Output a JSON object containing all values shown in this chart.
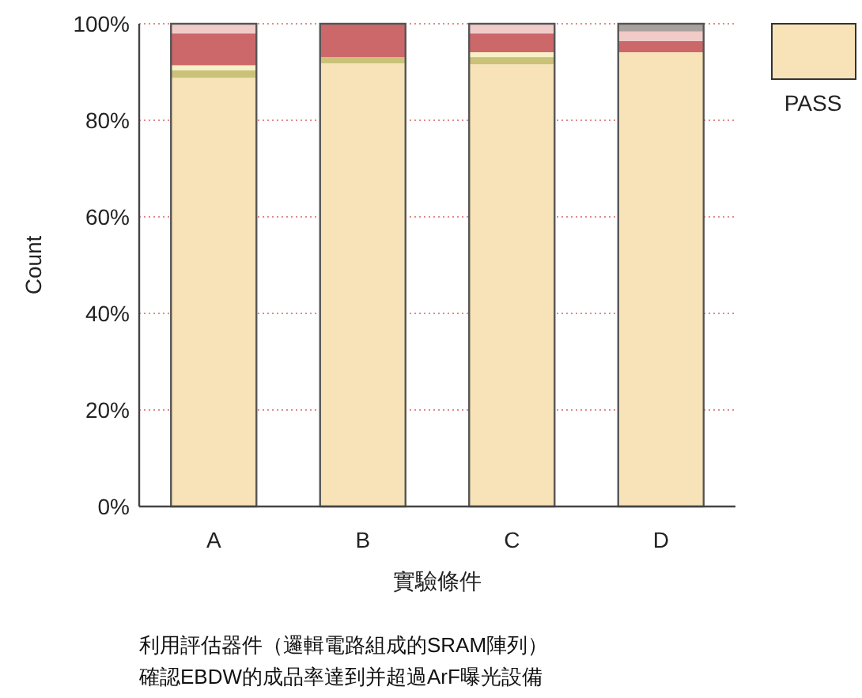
{
  "chart_data": {
    "type": "bar",
    "stacked": true,
    "xlabel": "實驗條件",
    "ylabel": "Count",
    "categories": [
      "A",
      "B",
      "C",
      "D"
    ],
    "series": [
      {
        "name": "PASS",
        "color": "#f7e3b7",
        "values": [
          88.8,
          91.8,
          91.6,
          94.1
        ]
      },
      {
        "color": "#cbc27a",
        "values": [
          1.6,
          1.3,
          1.5,
          null
        ]
      },
      {
        "color": "#f8f0c8",
        "values": [
          1.0,
          null,
          1.0,
          null
        ]
      },
      {
        "color": "#cc686a",
        "values": [
          6.6,
          6.9,
          3.9,
          2.3
        ]
      },
      {
        "color": "#f0cbc8",
        "values": [
          2.0,
          null,
          2.0,
          2.0
        ]
      },
      {
        "color": "#a9a19e",
        "values": [
          null,
          null,
          null,
          1.6
        ]
      }
    ],
    "ylim": [
      0,
      100
    ],
    "yticks": [
      {
        "value": 0,
        "label": "0%"
      },
      {
        "value": 20,
        "label": "20%"
      },
      {
        "value": 40,
        "label": "40%"
      },
      {
        "value": 60,
        "label": "60%"
      },
      {
        "value": 80,
        "label": "80%"
      },
      {
        "value": 100,
        "label": "100%"
      }
    ],
    "grid": "y",
    "legend": "right",
    "annotations": [
      "利用評估器件（邏輯電路組成的SRAM陣列）",
      "確認EBDW的成品率達到并超過ArF曝光設備"
    ]
  }
}
